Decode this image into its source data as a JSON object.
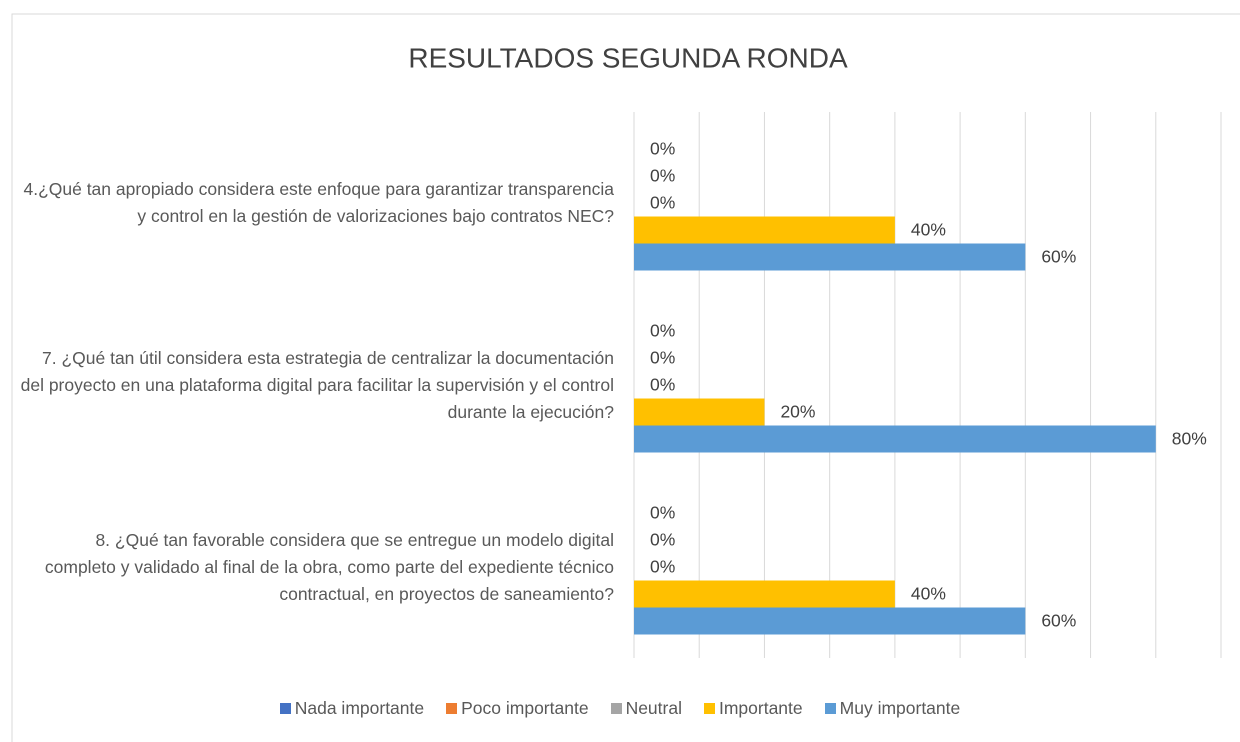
{
  "chart_data": {
    "type": "bar",
    "orientation": "horizontal",
    "title": "RESULTADOS SEGUNDA RONDA",
    "categories": [
      "4.¿Qué tan apropiado considera este enfoque para garantizar transparencia y control en la gestión de valorizaciones bajo contratos NEC?",
      "7. ¿Qué tan útil considera esta estrategia de centralizar la documentación del proyecto en una plataforma digital para facilitar la supervisión y el control durante la ejecución?",
      "8. ¿Qué tan favorable considera que se entregue un modelo digital completo y validado al final de la obra, como parte del expediente técnico contractual, en proyectos de saneamiento?"
    ],
    "series": [
      {
        "name": "Nada importante",
        "color": "#4472c4",
        "values": [
          0,
          0,
          0
        ],
        "value_labels": [
          "0%",
          "0%",
          "0%"
        ]
      },
      {
        "name": "Poco importante",
        "color": "#ed7d31",
        "values": [
          0,
          0,
          0
        ],
        "value_labels": [
          "0%",
          "0%",
          "0%"
        ]
      },
      {
        "name": "Neutral",
        "color": "#a5a5a5",
        "values": [
          0,
          0,
          0
        ],
        "value_labels": [
          "0%",
          "0%",
          "0%"
        ]
      },
      {
        "name": "Importante",
        "color": "#ffc000",
        "values": [
          40,
          20,
          40
        ],
        "value_labels": [
          "40%",
          "20%",
          "40%"
        ]
      },
      {
        "name": "Muy importante",
        "color": "#5b9bd5",
        "values": [
          60,
          80,
          60
        ],
        "value_labels": [
          "60%",
          "80%",
          "60%"
        ]
      }
    ],
    "xlim": [
      0,
      90
    ],
    "xticks": [
      0,
      10,
      20,
      30,
      40,
      50,
      60,
      70,
      80,
      90
    ],
    "grid": true,
    "legend": "bottom"
  }
}
